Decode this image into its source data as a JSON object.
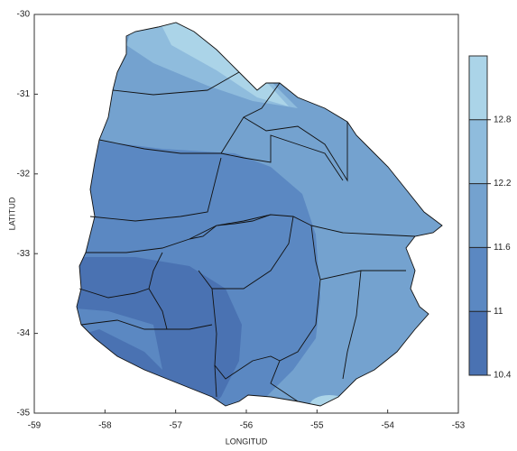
{
  "chart_data": {
    "type": "contour-map",
    "x_label": "LONGITUD",
    "y_label": "LATITUD",
    "xlim": [
      -59,
      -53
    ],
    "xticks": [
      -59,
      -58,
      -57,
      -56,
      -55,
      -54,
      -53
    ],
    "ylim": [
      -35,
      -30
    ],
    "yticks": [
      -35,
      -34,
      -33,
      -32,
      -31,
      -30
    ],
    "colorbar": {
      "lim": [
        10.4,
        13.4
      ],
      "ticks": [
        10.4,
        11,
        11.6,
        12.2,
        12.8
      ],
      "colors": [
        "#4a72b2",
        "#5b88c2",
        "#74a2cf",
        "#8fbcdd",
        "#abd4e8"
      ]
    }
  }
}
